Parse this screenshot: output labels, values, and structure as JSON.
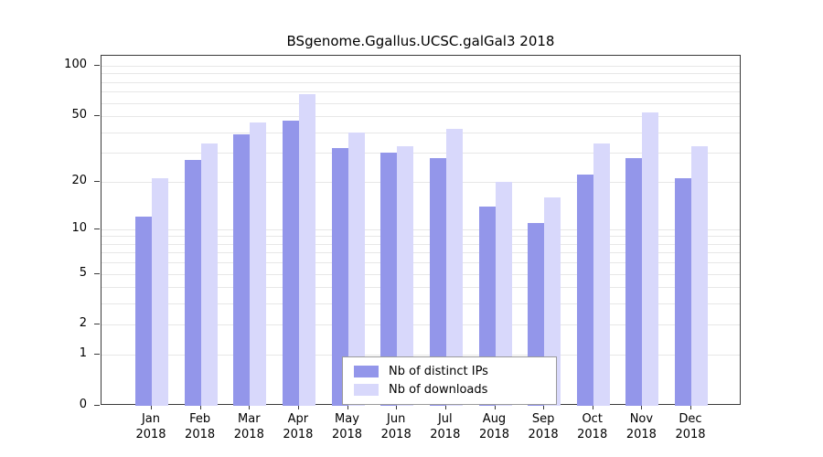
{
  "title": "BSgenome.Ggallus.UCSC.galGal3 2018",
  "chart_data": {
    "type": "bar",
    "title": "BSgenome.Ggallus.UCSC.galGal3 2018",
    "categories": [
      "Jan",
      "Feb",
      "Mar",
      "Apr",
      "May",
      "Jun",
      "Jul",
      "Aug",
      "Sep",
      "Oct",
      "Nov",
      "Dec"
    ],
    "year": "2018",
    "series": [
      {
        "name": "Nb of distinct IPs",
        "color": "#9396ea",
        "values": [
          12,
          27,
          39,
          47,
          32,
          30,
          28,
          14,
          11,
          22,
          28,
          21
        ]
      },
      {
        "name": "Nb of downloads",
        "color": "#d8d8fb",
        "values": [
          21,
          34,
          46,
          68,
          40,
          33,
          42,
          20,
          16,
          34,
          53,
          33
        ]
      }
    ],
    "scale": "log1p",
    "ylim": [
      0,
      100
    ],
    "yticks": [
      0,
      1,
      2,
      5,
      10,
      20,
      50,
      100
    ],
    "gridlines": [
      1,
      2,
      3,
      4,
      5,
      6,
      7,
      8,
      9,
      10,
      20,
      30,
      40,
      50,
      60,
      70,
      80,
      90,
      100
    ],
    "grid": true,
    "legend_position": "bottom-center-inside",
    "axis_color": "#3a3a3a",
    "gridline_color": "#e7e7e7",
    "background_color": "#ffffff"
  }
}
